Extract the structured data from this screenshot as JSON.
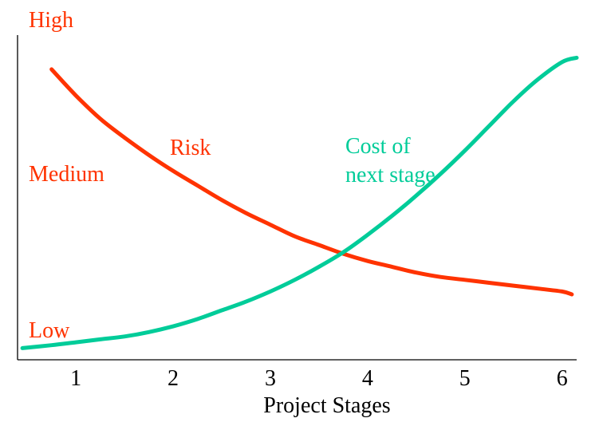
{
  "chart_data": {
    "type": "line",
    "title": "",
    "xlabel": "Project Stages",
    "ylabel": "",
    "x_ticks": [
      "1",
      "2",
      "3",
      "4",
      "5",
      "6"
    ],
    "xlim": [
      0.4,
      6.15
    ],
    "ylim": [
      0,
      100
    ],
    "y_levels": [
      {
        "label": "High",
        "value": 100
      },
      {
        "label": "Medium",
        "value": 58
      },
      {
        "label": "Low",
        "value": 7
      }
    ],
    "grid": false,
    "series": [
      {
        "name": "Risk",
        "color": "#ff3300",
        "x": [
          0.75,
          1.0,
          1.25,
          1.5,
          1.75,
          2.0,
          2.25,
          2.5,
          2.75,
          3.0,
          3.25,
          3.5,
          3.75,
          4.0,
          4.25,
          4.5,
          4.75,
          5.0,
          5.25,
          5.5,
          5.75,
          6.0,
          6.1
        ],
        "y": [
          97,
          88,
          80,
          73.5,
          67.5,
          62,
          57,
          52,
          47.5,
          43.5,
          39.5,
          36.5,
          33.5,
          31,
          29,
          27,
          25.5,
          24.5,
          23.5,
          22.5,
          21.5,
          20.5,
          19.5
        ]
      },
      {
        "name": "Cost of next stage",
        "name_lines": [
          "Cost of",
          "next stage"
        ],
        "color": "#00cc99",
        "x": [
          0.45,
          0.75,
          1.0,
          1.25,
          1.5,
          1.75,
          2.0,
          2.25,
          2.5,
          2.75,
          3.0,
          3.25,
          3.5,
          3.75,
          4.0,
          4.25,
          4.5,
          4.75,
          5.0,
          5.25,
          5.5,
          5.75,
          6.0,
          6.15
        ],
        "y": [
          1,
          2,
          3,
          4,
          5,
          6.5,
          8.5,
          11,
          14,
          17,
          20.5,
          24.5,
          29,
          34,
          40,
          46.5,
          53.5,
          61,
          69,
          77.5,
          86,
          93.5,
          99.5,
          101
        ]
      }
    ]
  }
}
